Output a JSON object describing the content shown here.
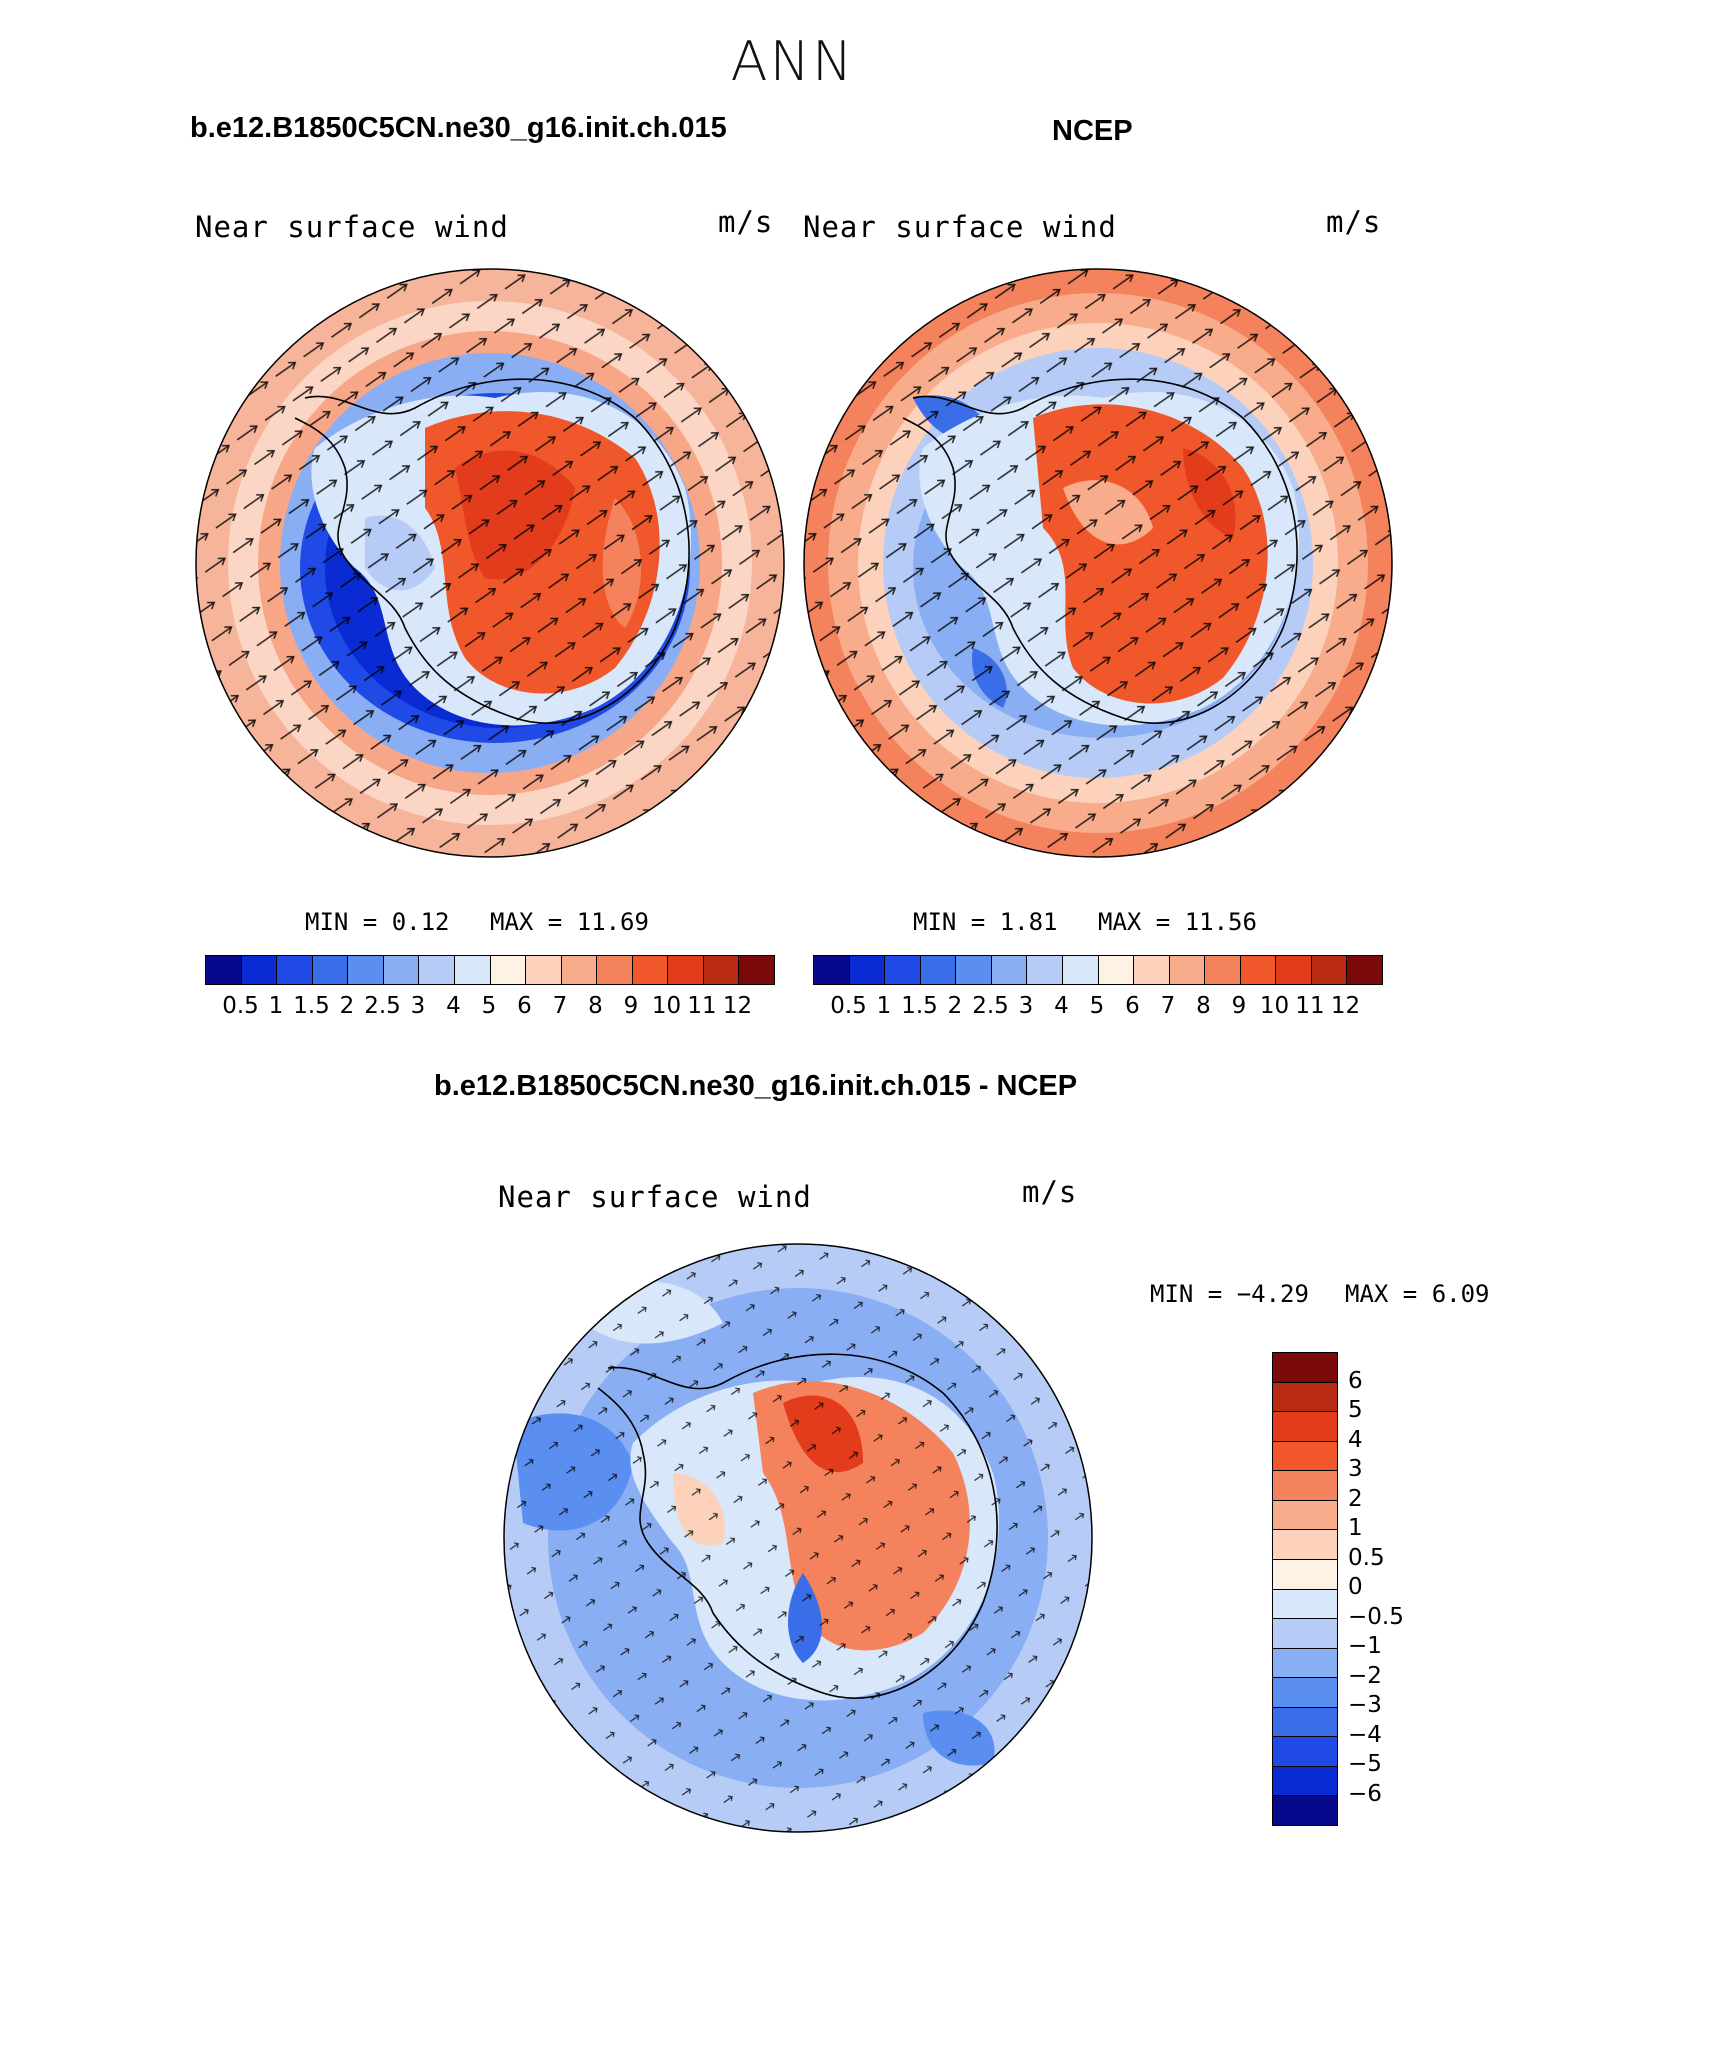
{
  "page_title": "ANN",
  "panels": [
    {
      "case_title": "b.e12.B1850C5CN.ne30_g16.init.ch.015",
      "variable_label": "Near surface wind",
      "units": "m/s",
      "min_text": "MIN =    0.12",
      "max_text": "MAX =   11.69",
      "colorbar_ticks": [
        "0.5",
        "1",
        "1.5",
        "2",
        "2.5",
        "3",
        "4",
        "5",
        "6",
        "7",
        "8",
        "9",
        "10",
        "11",
        "12"
      ],
      "palette_name": "blue-white-red",
      "colors": [
        "#08088c",
        "#0a2ad4",
        "#1f4ae6",
        "#3a6ee8",
        "#5a8ef0",
        "#8aaef4",
        "#b6ccf6",
        "#d8e8fa",
        "#fdf2e4",
        "#fcd2bc",
        "#f8ac8c",
        "#f4825c",
        "#f0582c",
        "#e23c1c",
        "#b82a12",
        "#7a0a0a"
      ]
    },
    {
      "case_title": "NCEP",
      "variable_label": "Near surface wind",
      "units": "m/s",
      "min_text": "MIN =    1.81",
      "max_text": "MAX =   11.56",
      "colorbar_ticks": [
        "0.5",
        "1",
        "1.5",
        "2",
        "2.5",
        "3",
        "4",
        "5",
        "6",
        "7",
        "8",
        "9",
        "10",
        "11",
        "12"
      ],
      "palette_name": "blue-white-red",
      "colors": [
        "#08088c",
        "#0a2ad4",
        "#1f4ae6",
        "#3a6ee8",
        "#5a8ef0",
        "#8aaef4",
        "#b6ccf6",
        "#d8e8fa",
        "#fdf2e4",
        "#fcd2bc",
        "#f8ac8c",
        "#f4825c",
        "#f0582c",
        "#e23c1c",
        "#b82a12",
        "#7a0a0a"
      ]
    },
    {
      "case_title": "b.e12.B1850C5CN.ne30_g16.init.ch.015 - NCEP",
      "variable_label": "Near surface wind",
      "units": "m/s",
      "min_text": "MIN =   −4.29",
      "max_text": "MAX =    6.09",
      "colorbar_ticks": [
        "6",
        "5",
        "4",
        "3",
        "2",
        "1",
        "0.5",
        "0",
        "−0.5",
        "−1",
        "−2",
        "−3",
        "−4",
        "−5",
        "−6"
      ],
      "palette_name": "blue-white-red diverging",
      "colors": [
        "#7a0a0a",
        "#b82a12",
        "#e23c1c",
        "#f0582c",
        "#f4825c",
        "#f8ac8c",
        "#fcd2bc",
        "#fdf2e4",
        "#d8e8fa",
        "#b6ccf6",
        "#8aaef4",
        "#5a8ef0",
        "#3a6ee8",
        "#1f4ae6",
        "#0a2ad4",
        "#08088c"
      ]
    }
  ]
}
